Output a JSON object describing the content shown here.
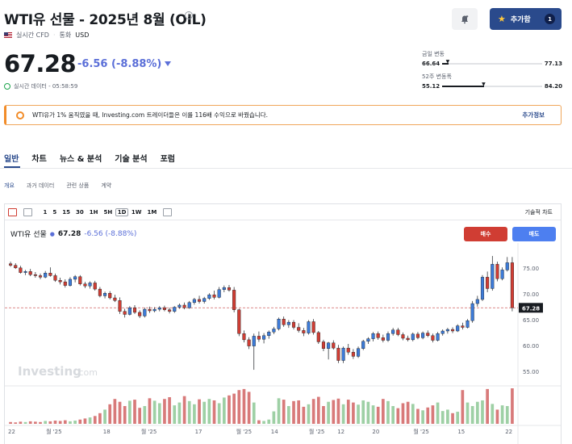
{
  "header": {
    "title": "WTI유 선물 - 2025년 8월 (OIL)",
    "realtime": "실시간 CFD",
    "currency_label": "통화",
    "currency": "USD",
    "watchlist_button": "추가함",
    "watchlist_count": "1"
  },
  "quote": {
    "price": "67.28",
    "change": "-6.56 (-8.88%)",
    "time_label": "실시간 데이터 - 05:58:59"
  },
  "ranges": {
    "day_label": "금일 변동",
    "day_low": "66.64",
    "day_high": "77.13",
    "day_position": 0.06,
    "week52_label": "52주 변동폭",
    "week52_low": "55.12",
    "week52_high": "84.20",
    "week52_position": 0.42
  },
  "banner": {
    "text": "WTI유가 1% 움직였을 때, Investing.com 트레이더들은 이를 116배 수익으로 바꿨습니다.",
    "link": "추가정보"
  },
  "tabs": [
    "일반",
    "차트",
    "뉴스 & 분석",
    "기술 분석",
    "포럼"
  ],
  "subtabs": [
    "개요",
    "과거 데이터",
    "관련 상품",
    "계약"
  ],
  "toolbar": {
    "timeframes": [
      "1",
      "5",
      "15",
      "30",
      "1H",
      "5H",
      "1D",
      "1W",
      "1M"
    ],
    "active_timeframe": "1D",
    "tech_chart": "기술적 차트"
  },
  "chart_legend": {
    "name": "WTI유 선물",
    "value": "67.28",
    "change": "-6.56 (-8.88%)"
  },
  "trade": {
    "sell": "매수",
    "buy": "매도"
  },
  "watermark": {
    "main": "Investing",
    "suffix": ".com"
  },
  "colors": {
    "up": "#3d7bd8",
    "down": "#d03d33",
    "vol_up": "#9ed0a5",
    "vol_down": "#d87a7a",
    "accent": "#2a4a8c",
    "change": "#5b6fd8"
  },
  "chart_data": {
    "type": "candlestick",
    "y_ticks": [
      "75.00",
      "70.00",
      "65.00",
      "60.00",
      "55.00"
    ],
    "ylim": [
      52.5,
      79.5
    ],
    "x_ticks": [
      "22",
      "월 '25",
      "18",
      "월 '25",
      "17",
      "월 '25",
      "14",
      "월 '25",
      "12",
      "20",
      "월 '25",
      "15",
      "22"
    ],
    "current_price": 67.28,
    "candles": [
      [
        75.8,
        76.2,
        75.2,
        75.5
      ],
      [
        75.5,
        75.9,
        74.8,
        75.0
      ],
      [
        75.0,
        75.4,
        73.9,
        74.1
      ],
      [
        74.1,
        74.6,
        73.6,
        74.3
      ],
      [
        74.3,
        74.8,
        73.4,
        73.7
      ],
      [
        73.7,
        74.2,
        73.1,
        73.5
      ],
      [
        73.5,
        73.9,
        72.8,
        73.2
      ],
      [
        73.2,
        74.4,
        73.0,
        74.0
      ],
      [
        74.0,
        75.1,
        73.3,
        73.5
      ],
      [
        73.5,
        73.9,
        72.3,
        72.6
      ],
      [
        72.6,
        73.1,
        71.8,
        72.3
      ],
      [
        72.3,
        72.8,
        71.2,
        71.6
      ],
      [
        71.6,
        73.2,
        71.4,
        72.8
      ],
      [
        72.8,
        73.6,
        72.2,
        73.3
      ],
      [
        73.3,
        73.6,
        71.6,
        71.9
      ],
      [
        71.9,
        72.3,
        71.1,
        71.5
      ],
      [
        71.5,
        72.4,
        71.0,
        72.1
      ],
      [
        72.1,
        72.5,
        70.6,
        70.9
      ],
      [
        70.9,
        71.3,
        69.3,
        69.6
      ],
      [
        69.6,
        70.4,
        69.1,
        70.1
      ],
      [
        70.1,
        70.5,
        68.9,
        69.2
      ],
      [
        69.2,
        69.8,
        68.4,
        68.7
      ],
      [
        68.7,
        69.3,
        66.1,
        66.6
      ],
      [
        66.6,
        67.1,
        65.4,
        66.0
      ],
      [
        66.0,
        67.6,
        65.8,
        67.3
      ],
      [
        67.3,
        67.8,
        66.1,
        66.4
      ],
      [
        66.4,
        66.8,
        65.3,
        65.7
      ],
      [
        65.7,
        67.3,
        65.4,
        67.0
      ],
      [
        67.0,
        67.5,
        66.3,
        66.7
      ],
      [
        66.7,
        67.4,
        66.4,
        67.0
      ],
      [
        67.0,
        67.6,
        66.6,
        67.3
      ],
      [
        67.3,
        67.7,
        66.6,
        66.9
      ],
      [
        66.9,
        67.3,
        66.2,
        66.6
      ],
      [
        66.6,
        67.6,
        66.3,
        67.4
      ],
      [
        67.4,
        68.1,
        67.1,
        67.8
      ],
      [
        67.8,
        68.3,
        67.0,
        67.3
      ],
      [
        67.3,
        68.6,
        67.1,
        68.3
      ],
      [
        68.3,
        69.2,
        67.9,
        68.9
      ],
      [
        68.9,
        69.6,
        68.1,
        68.5
      ],
      [
        68.5,
        69.4,
        68.1,
        69.1
      ],
      [
        69.1,
        70.1,
        68.8,
        69.8
      ],
      [
        69.8,
        70.6,
        68.9,
        69.3
      ],
      [
        69.3,
        71.3,
        69.1,
        70.8
      ],
      [
        70.8,
        71.6,
        70.3,
        71.2
      ],
      [
        71.2,
        71.7,
        70.4,
        70.7
      ],
      [
        70.7,
        71.3,
        66.4,
        66.9
      ],
      [
        66.9,
        67.1,
        61.8,
        62.3
      ],
      [
        62.3,
        62.9,
        60.6,
        61.1
      ],
      [
        61.1,
        61.6,
        59.3,
        59.9
      ],
      [
        59.9,
        62.3,
        55.3,
        61.8
      ],
      [
        61.8,
        62.7,
        60.7,
        61.2
      ],
      [
        61.2,
        62.4,
        60.4,
        61.9
      ],
      [
        61.9,
        62.9,
        61.3,
        62.6
      ],
      [
        62.6,
        63.6,
        62.2,
        63.2
      ],
      [
        63.2,
        65.4,
        62.9,
        65.1
      ],
      [
        65.1,
        65.6,
        63.6,
        64.0
      ],
      [
        64.0,
        64.9,
        63.4,
        64.5
      ],
      [
        64.5,
        64.9,
        63.1,
        63.5
      ],
      [
        63.5,
        64.3,
        62.5,
        62.9
      ],
      [
        62.9,
        63.4,
        61.8,
        62.4
      ],
      [
        62.4,
        64.9,
        62.1,
        64.6
      ],
      [
        64.6,
        65.1,
        62.1,
        62.5
      ],
      [
        62.5,
        62.8,
        60.3,
        60.7
      ],
      [
        60.7,
        61.1,
        58.9,
        59.4
      ],
      [
        59.4,
        60.7,
        57.3,
        60.5
      ],
      [
        60.5,
        61.0,
        59.2,
        59.5
      ],
      [
        59.5,
        60.1,
        56.6,
        57.1
      ],
      [
        57.1,
        59.8,
        56.6,
        59.5
      ],
      [
        59.5,
        60.3,
        58.2,
        58.7
      ],
      [
        58.7,
        59.3,
        57.4,
        57.9
      ],
      [
        57.9,
        59.8,
        57.6,
        59.4
      ],
      [
        59.4,
        61.1,
        59.1,
        60.8
      ],
      [
        60.8,
        61.6,
        60.3,
        61.3
      ],
      [
        61.3,
        62.6,
        60.8,
        62.3
      ],
      [
        62.3,
        62.7,
        61.1,
        61.5
      ],
      [
        61.5,
        62.1,
        60.6,
        61.0
      ],
      [
        61.0,
        62.7,
        60.7,
        62.3
      ],
      [
        62.3,
        63.4,
        61.9,
        63.0
      ],
      [
        63.0,
        63.4,
        61.8,
        62.1
      ],
      [
        62.1,
        62.5,
        61.0,
        61.4
      ],
      [
        61.4,
        61.9,
        60.8,
        61.1
      ],
      [
        61.1,
        62.5,
        60.8,
        62.2
      ],
      [
        62.2,
        62.6,
        61.2,
        61.5
      ],
      [
        61.5,
        62.7,
        61.2,
        62.4
      ],
      [
        62.4,
        62.9,
        61.6,
        61.9
      ],
      [
        61.9,
        62.3,
        60.6,
        61.0
      ],
      [
        61.0,
        62.6,
        60.8,
        62.3
      ],
      [
        62.3,
        63.1,
        61.9,
        62.8
      ],
      [
        62.8,
        63.4,
        62.3,
        63.1
      ],
      [
        63.1,
        63.5,
        62.4,
        62.8
      ],
      [
        62.8,
        64.1,
        62.6,
        63.8
      ],
      [
        63.8,
        64.4,
        63.1,
        63.5
      ],
      [
        63.5,
        65.1,
        63.3,
        64.8
      ],
      [
        64.8,
        68.6,
        64.4,
        68.1
      ],
      [
        68.1,
        69.6,
        67.5,
        68.9
      ],
      [
        68.9,
        73.6,
        68.6,
        73.2
      ],
      [
        73.2,
        74.3,
        70.3,
        71.0
      ],
      [
        71.0,
        77.3,
        70.6,
        75.7
      ],
      [
        75.7,
        76.2,
        72.4,
        72.9
      ],
      [
        72.9,
        75.1,
        72.6,
        74.6
      ],
      [
        74.6,
        77.1,
        74.3,
        76.0
      ],
      [
        76.0,
        77.1,
        66.6,
        67.3
      ]
    ],
    "volume": [
      0.05,
      0.04,
      0.06,
      0.05,
      0.07,
      0.06,
      0.05,
      0.08,
      0.07,
      0.09,
      0.08,
      0.1,
      0.07,
      0.09,
      0.12,
      0.15,
      0.18,
      0.22,
      0.3,
      0.4,
      0.55,
      0.7,
      0.62,
      0.5,
      0.65,
      0.68,
      0.45,
      0.5,
      0.72,
      0.65,
      0.58,
      0.7,
      0.75,
      0.52,
      0.6,
      0.78,
      0.64,
      0.55,
      0.69,
      0.62,
      0.7,
      0.66,
      0.58,
      0.74,
      0.8,
      0.85,
      0.95,
      0.98,
      0.9,
      0.6,
      0.1,
      0.08,
      0.12,
      0.35,
      0.72,
      0.68,
      0.5,
      0.64,
      0.66,
      0.48,
      0.55,
      0.7,
      0.76,
      0.5,
      0.62,
      0.67,
      0.71,
      0.55,
      0.68,
      0.6,
      0.54,
      0.66,
      0.62,
      0.52,
      0.48,
      0.7,
      0.64,
      0.5,
      0.44,
      0.58,
      0.62,
      0.56,
      0.42,
      0.38,
      0.46,
      0.52,
      0.6,
      0.36,
      0.4,
      0.3,
      0.34,
      0.95,
      0.6,
      0.5,
      0.62,
      0.66,
      0.98,
      0.56,
      0.4,
      0.52,
      0.5,
      1.0
    ]
  }
}
